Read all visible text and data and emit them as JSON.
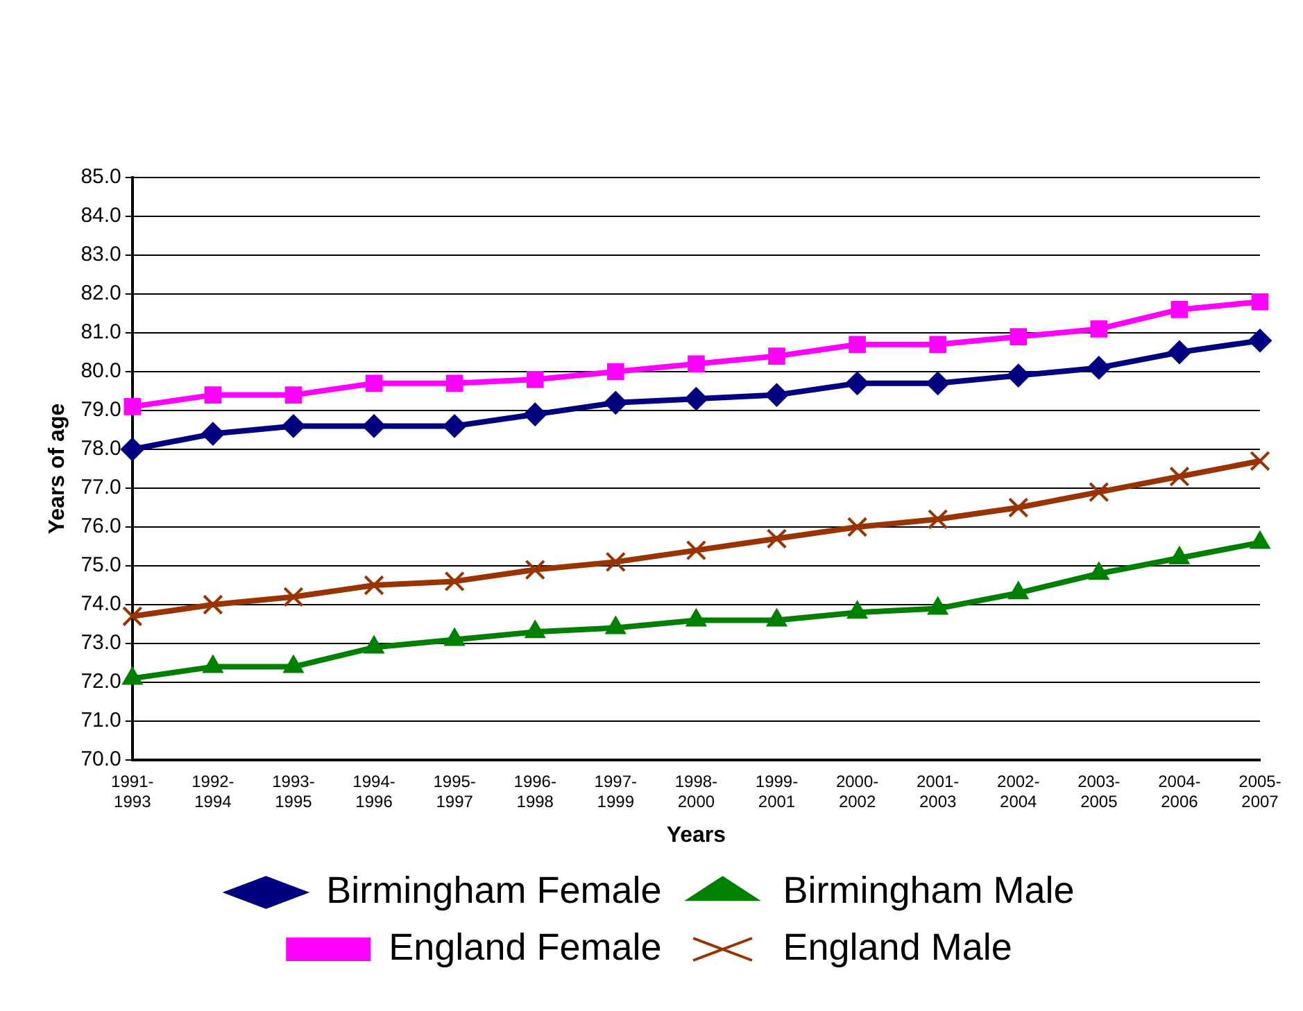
{
  "chart_data": {
    "type": "line",
    "xlabel": "Years",
    "ylabel": "Years of age",
    "categories": [
      "1991-1993",
      "1992-1994",
      "1993-1995",
      "1994-1996",
      "1995-1997",
      "1996-1998",
      "1997-1999",
      "1998-2000",
      "1999-2001",
      "2000-2002",
      "2001-2003",
      "2002-2004",
      "2003-2005",
      "2004-2006",
      "2005-2007"
    ],
    "series": [
      {
        "name": "Birmingham Female",
        "color": "#000080",
        "marker": "diamond",
        "values": [
          78.0,
          78.4,
          78.6,
          78.6,
          78.6,
          78.9,
          79.2,
          79.3,
          79.4,
          79.7,
          79.7,
          79.9,
          80.1,
          80.5,
          80.8
        ]
      },
      {
        "name": "Birmingham Male",
        "color": "#008000",
        "marker": "triangle",
        "values": [
          72.1,
          72.4,
          72.4,
          72.9,
          73.1,
          73.3,
          73.4,
          73.6,
          73.6,
          73.8,
          73.9,
          74.3,
          74.8,
          75.2,
          75.6
        ]
      },
      {
        "name": "England Female",
        "color": "#ff00ff",
        "marker": "square",
        "values": [
          79.1,
          79.4,
          79.4,
          79.7,
          79.7,
          79.8,
          80.0,
          80.2,
          80.4,
          80.7,
          80.7,
          80.9,
          81.1,
          81.6,
          81.8
        ]
      },
      {
        "name": "England Male",
        "color": "#993300",
        "marker": "cross",
        "values": [
          73.7,
          74.0,
          74.2,
          74.5,
          74.6,
          74.9,
          75.1,
          75.4,
          75.7,
          76.0,
          76.2,
          76.5,
          76.9,
          77.3,
          77.7
        ]
      }
    ],
    "ylim": [
      70,
      85
    ],
    "yticks": [
      {
        "value": 70,
        "label": "70.0"
      },
      {
        "value": 71,
        "label": "71.0"
      },
      {
        "value": 72,
        "label": "72.0"
      },
      {
        "value": 73,
        "label": "73.0"
      },
      {
        "value": 74,
        "label": "74.0"
      },
      {
        "value": 75,
        "label": "75.0"
      },
      {
        "value": 76,
        "label": "76.0"
      },
      {
        "value": 77,
        "label": "77.0"
      },
      {
        "value": 78,
        "label": "78.0"
      },
      {
        "value": 79,
        "label": "79.0"
      },
      {
        "value": 80,
        "label": "80.0"
      },
      {
        "value": 81,
        "label": "81.0"
      },
      {
        "value": 82,
        "label": "82.0"
      },
      {
        "value": 83,
        "label": "83.0"
      },
      {
        "value": 84,
        "label": "84.0"
      },
      {
        "value": 85,
        "label": "85.0"
      }
    ],
    "grid": "y",
    "legend": "bottom",
    "line_style": "solid"
  }
}
